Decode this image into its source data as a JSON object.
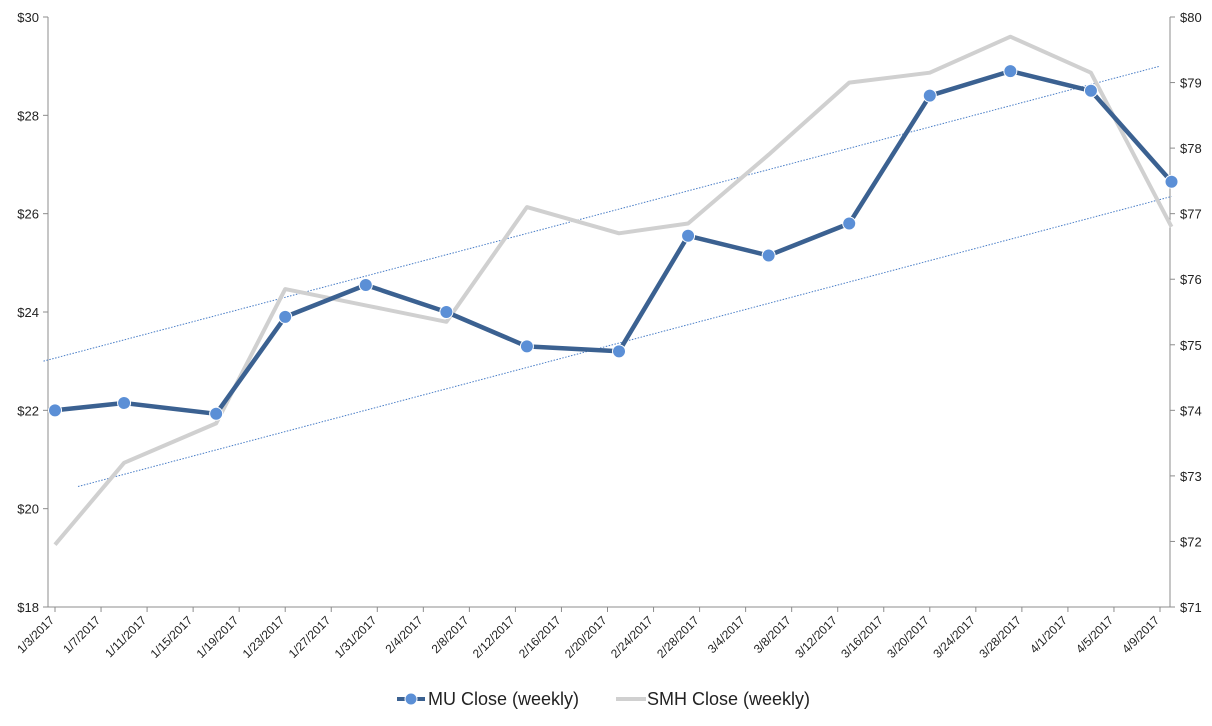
{
  "colors": {
    "mu_line": "#3B6191",
    "mu_marker": "#5B8FD6",
    "smh_line": "#D0D0D0",
    "trend": "#4A7EC7",
    "axis": "#8C8C8C"
  },
  "chart_data": {
    "type": "line",
    "grid": false,
    "legend_position": "bottom",
    "x_tick_labels": [
      "1/3/2017",
      "1/7/2017",
      "1/11/2017",
      "1/15/2017",
      "1/19/2017",
      "1/23/2017",
      "1/27/2017",
      "1/31/2017",
      "2/4/2017",
      "2/8/2017",
      "2/12/2017",
      "2/16/2017",
      "2/20/2017",
      "2/24/2017",
      "2/28/2017",
      "3/4/2017",
      "3/8/2017",
      "3/12/2017",
      "3/16/2017",
      "3/20/2017",
      "3/24/2017",
      "3/28/2017",
      "4/1/2017",
      "4/5/2017",
      "4/9/2017"
    ],
    "x_range": [
      "1/3/2017",
      "4/9/2017"
    ],
    "y_left": {
      "min": 18,
      "max": 30,
      "ticks": [
        "$18",
        "$20",
        "$22",
        "$24",
        "$26",
        "$28",
        "$30"
      ]
    },
    "y_right": {
      "min": 71,
      "max": 80,
      "ticks": [
        "$71",
        "$72",
        "$73",
        "$74",
        "$75",
        "$76",
        "$77",
        "$78",
        "$79",
        "$80"
      ]
    },
    "series": [
      {
        "name": "MU Close (weekly)",
        "axis": "left",
        "markers": true,
        "points": [
          {
            "x": "1/3/2017",
            "y": 22.0
          },
          {
            "x": "1/9/2017",
            "y": 22.15
          },
          {
            "x": "1/17/2017",
            "y": 21.93
          },
          {
            "x": "1/23/2017",
            "y": 23.9
          },
          {
            "x": "1/30/2017",
            "y": 24.55
          },
          {
            "x": "2/6/2017",
            "y": 24.0
          },
          {
            "x": "2/13/2017",
            "y": 23.3
          },
          {
            "x": "2/21/2017",
            "y": 23.2
          },
          {
            "x": "2/27/2017",
            "y": 25.55
          },
          {
            "x": "3/6/2017",
            "y": 25.15
          },
          {
            "x": "3/13/2017",
            "y": 25.8
          },
          {
            "x": "3/20/2017",
            "y": 28.4
          },
          {
            "x": "3/27/2017",
            "y": 28.9
          },
          {
            "x": "4/3/2017",
            "y": 28.5
          },
          {
            "x": "4/10/2017",
            "y": 26.65
          }
        ]
      },
      {
        "name": "SMH Close (weekly)",
        "axis": "right",
        "markers": false,
        "points": [
          {
            "x": "1/3/2017",
            "y": 71.95
          },
          {
            "x": "1/9/2017",
            "y": 73.2
          },
          {
            "x": "1/17/2017",
            "y": 73.8
          },
          {
            "x": "1/23/2017",
            "y": 75.85
          },
          {
            "x": "1/30/2017",
            "y": 75.6
          },
          {
            "x": "2/6/2017",
            "y": 75.35
          },
          {
            "x": "2/13/2017",
            "y": 77.1
          },
          {
            "x": "2/21/2017",
            "y": 76.7
          },
          {
            "x": "2/27/2017",
            "y": 76.85
          },
          {
            "x": "3/6/2017",
            "y": 77.9
          },
          {
            "x": "3/13/2017",
            "y": 79.0
          },
          {
            "x": "3/20/2017",
            "y": 79.15
          },
          {
            "x": "3/27/2017",
            "y": 79.7
          },
          {
            "x": "4/3/2017",
            "y": 79.15
          },
          {
            "x": "4/10/2017",
            "y": 76.8
          }
        ]
      }
    ],
    "trend_lines": [
      {
        "axis": "left",
        "from": {
          "x": "1/2/2017",
          "y": 23.0
        },
        "to": {
          "x": "4/9/2017",
          "y": 29.0
        }
      },
      {
        "axis": "left",
        "from": {
          "x": "1/5/2017",
          "y": 20.45
        },
        "to": {
          "x": "4/10/2017",
          "y": 26.35
        }
      }
    ]
  }
}
